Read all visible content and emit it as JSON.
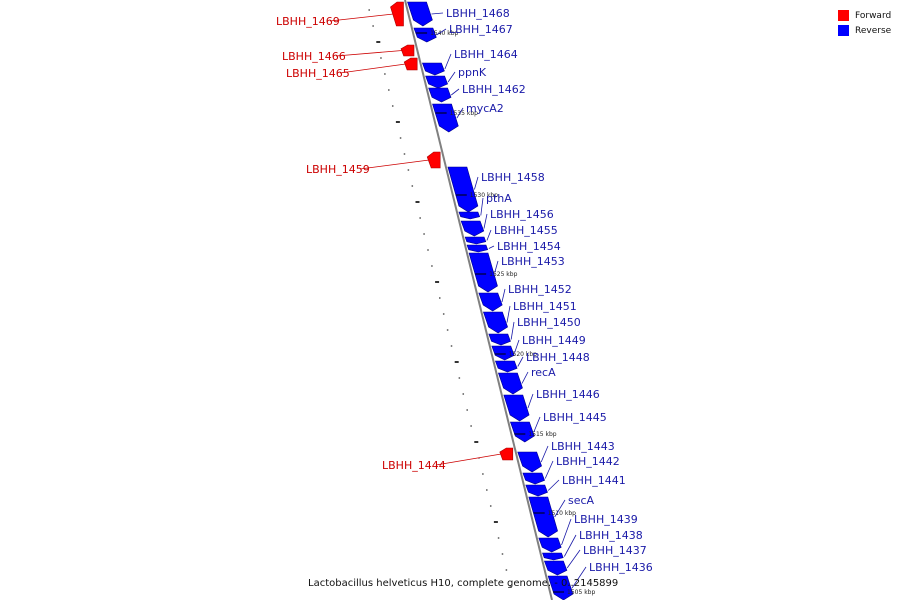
{
  "colors": {
    "forward": "#ff0000",
    "reverse": "#0000ff",
    "forward_label": "#cc0000",
    "reverse_label": "#1a1aa8",
    "backbone": "#808080"
  },
  "legend": [
    {
      "label": "Forward",
      "strand": "forward"
    },
    {
      "label": "Reverse",
      "strand": "reverse"
    }
  ],
  "footer": "Lactobacillus helveticus H10, complete genome. - 0..2145899",
  "kbp_marks": [
    "1540 kbp",
    "1535 kbp",
    "1530 kbp",
    "1525 kbp",
    "1520 kbp",
    "1515 kbp",
    "1510 kbp",
    "1505 kbp"
  ],
  "genes": [
    {
      "name": "LBHH_1469",
      "strand": "forward"
    },
    {
      "name": "LBHH_1468",
      "strand": "reverse"
    },
    {
      "name": "LBHH_1467",
      "strand": "reverse"
    },
    {
      "name": "LBHH_1466",
      "strand": "forward"
    },
    {
      "name": "LBHH_1465",
      "strand": "forward"
    },
    {
      "name": "LBHH_1464",
      "strand": "reverse"
    },
    {
      "name": "ppnK",
      "strand": "reverse"
    },
    {
      "name": "LBHH_1462",
      "strand": "reverse"
    },
    {
      "name": "mycA2",
      "strand": "reverse"
    },
    {
      "name": "LBHH_1459",
      "strand": "forward"
    },
    {
      "name": "LBHH_1458",
      "strand": "reverse"
    },
    {
      "name": "pthA",
      "strand": "reverse"
    },
    {
      "name": "LBHH_1456",
      "strand": "reverse"
    },
    {
      "name": "LBHH_1455",
      "strand": "reverse"
    },
    {
      "name": "LBHH_1454",
      "strand": "reverse"
    },
    {
      "name": "LBHH_1453",
      "strand": "reverse"
    },
    {
      "name": "LBHH_1452",
      "strand": "reverse"
    },
    {
      "name": "LBHH_1451",
      "strand": "reverse"
    },
    {
      "name": "LBHH_1450",
      "strand": "reverse"
    },
    {
      "name": "LBHH_1449",
      "strand": "reverse"
    },
    {
      "name": "LBHH_1448",
      "strand": "reverse"
    },
    {
      "name": "recA",
      "strand": "reverse"
    },
    {
      "name": "LBHH_1446",
      "strand": "reverse"
    },
    {
      "name": "LBHH_1445",
      "strand": "reverse"
    },
    {
      "name": "LBHH_1444",
      "strand": "forward"
    },
    {
      "name": "LBHH_1443",
      "strand": "reverse"
    },
    {
      "name": "LBHH_1442",
      "strand": "reverse"
    },
    {
      "name": "LBHH_1441",
      "strand": "reverse"
    },
    {
      "name": "secA",
      "strand": "reverse"
    },
    {
      "name": "LBHH_1439",
      "strand": "reverse"
    },
    {
      "name": "LBHH_1438",
      "strand": "reverse"
    },
    {
      "name": "LBHH_1437",
      "strand": "reverse"
    },
    {
      "name": "LBHH_1436",
      "strand": "reverse"
    }
  ]
}
